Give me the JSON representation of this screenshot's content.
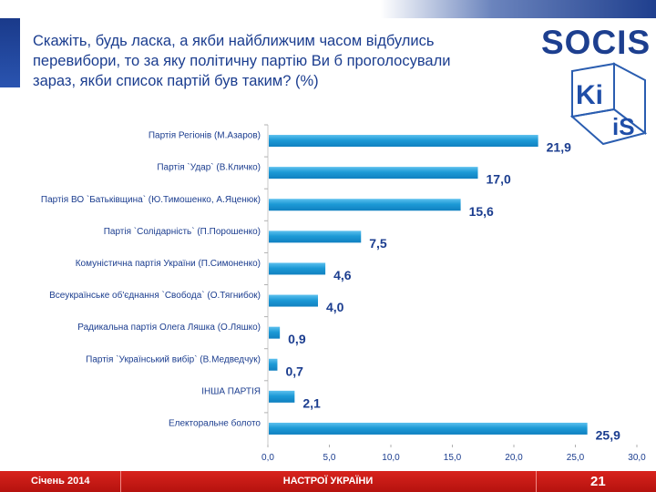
{
  "title": "Скажіть, будь ласка, а якби найближчим часом відбулись перевибори, то за яку політичну партію Ви б проголосували зараз, якби список партій був таким? (%)",
  "logos": {
    "socis": "SOCIS",
    "kiis_top": "Ki",
    "kiis_bottom": "iS"
  },
  "colors": {
    "bar": "#1d9ad6",
    "title": "#1b3d8f",
    "footer": "#c81a15"
  },
  "chart_data": {
    "type": "bar",
    "orientation": "horizontal",
    "title": "",
    "categories": [
      "Партія Регіонів (М.Азаров)",
      "Партія `Удар` (В.Кличко)",
      "Партія ВО `Батьківщина` (Ю.Тимошенко, А.Яценюк)",
      "Партія `Солідарність` (П.Порошенко)",
      "Комуністична партія України (П.Симоненко)",
      "Всеукраїнське об'єднання `Свобода` (О.Тягнибок)",
      "Радикальна партія Олега Ляшка (О.Ляшко)",
      "Партія `Український вибір` (В.Медведчук)",
      "ІНША ПАРТІЯ",
      "Електоральне болото"
    ],
    "values": [
      21.9,
      17.0,
      15.6,
      7.5,
      4.6,
      4.0,
      0.9,
      0.7,
      2.1,
      25.9
    ],
    "value_labels": [
      "21,9",
      "17,0",
      "15,6",
      "7,5",
      "4,6",
      "4,0",
      "0,9",
      "0,7",
      "2,1",
      "25,9"
    ],
    "xlim": [
      0,
      30
    ],
    "ticks": [
      0,
      5,
      10,
      15,
      20,
      25,
      30
    ],
    "tick_labels": [
      "0,0",
      "5,0",
      "10,0",
      "15,0",
      "20,0",
      "25,0",
      "30,0"
    ],
    "xlabel": "",
    "ylabel": "",
    "grid": false,
    "legend": "none"
  },
  "footer": {
    "date": "Січень 2014",
    "section": "НАСТРОЇ УКРАЇНИ",
    "page": "21"
  }
}
